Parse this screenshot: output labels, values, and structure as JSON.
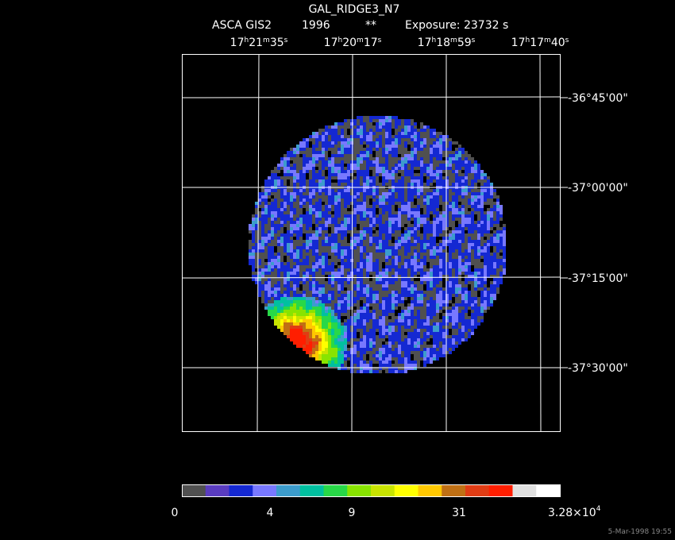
{
  "header": {
    "target": "GAL_RIDGE3_N7",
    "instrument": "ASCA GIS2",
    "year": "1996",
    "flag": "**",
    "exposure": "Exposure: 23732 s"
  },
  "ra_labels": [
    [
      "17",
      "h",
      "21",
      "m",
      "35",
      "s"
    ],
    [
      "17",
      "h",
      "20",
      "m",
      "17",
      "s"
    ],
    [
      "17",
      "h",
      "18",
      "m",
      "59",
      "s"
    ],
    [
      "17",
      "h",
      "17",
      "m",
      "40",
      "s"
    ]
  ],
  "dec_labels": [
    "-36°45'00\"",
    "-37°00'00\"",
    "-37°15'00\"",
    "-37°30'00\""
  ],
  "colorbar": {
    "colors": [
      "#505050",
      "#5a3cc0",
      "#1428d2",
      "#7878ff",
      "#3c9ccc",
      "#00c0a0",
      "#28d848",
      "#88e400",
      "#c8e400",
      "#ffff00",
      "#ffc800",
      "#c07014",
      "#e03c14",
      "#ff1e00",
      "#e0e0e0",
      "#ffffff"
    ],
    "labels": [
      "0",
      "4",
      "9",
      "31"
    ],
    "max_label": {
      "mantissa": "3.28×10",
      "exponent": "4"
    }
  },
  "timestamp": "5-Mar-1998 19:55"
}
